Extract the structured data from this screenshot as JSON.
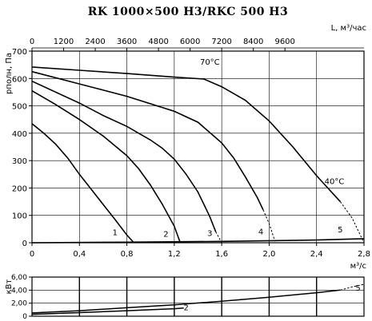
{
  "chart_data": [
    {
      "type": "line",
      "title": "RK 1000×500 H3/RKC 500 H3",
      "ylabel": "pполн, Па",
      "xlabel": "м³/с",
      "top_axis_label": "L, м³/час",
      "xlim": [
        0,
        2.8
      ],
      "ylim": [
        0,
        700
      ],
      "x_ticks": [
        "0",
        "0,4",
        "0,8",
        "1,2",
        "1,6",
        "2,0",
        "2,4",
        "2,8"
      ],
      "y_ticks": [
        "0",
        "100",
        "200",
        "300",
        "400",
        "500",
        "600",
        "700"
      ],
      "top_ticks": [
        "0",
        "1200",
        "2400",
        "3600",
        "4800",
        "6000",
        "7200",
        "8400",
        "9600"
      ],
      "grid": true,
      "annotations": [
        "70°C",
        "40°C"
      ],
      "series": [
        {
          "name": "1",
          "x": [
            0,
            0.1,
            0.2,
            0.3,
            0.4,
            0.5,
            0.6,
            0.7,
            0.8,
            0.86
          ],
          "y": [
            435,
            400,
            360,
            310,
            250,
            195,
            140,
            85,
            28,
            0
          ]
        },
        {
          "name": "2",
          "x": [
            0,
            0.2,
            0.4,
            0.6,
            0.8,
            0.9,
            1.0,
            1.1,
            1.2,
            1.25
          ],
          "y": [
            555,
            505,
            450,
            390,
            318,
            270,
            210,
            140,
            60,
            0
          ]
        },
        {
          "name": "3",
          "x": [
            0,
            0.2,
            0.4,
            0.6,
            0.8,
            1.0,
            1.1,
            1.2,
            1.3,
            1.4,
            1.5,
            1.55
          ],
          "y": [
            590,
            550,
            510,
            465,
            425,
            375,
            345,
            305,
            250,
            185,
            95,
            40
          ]
        },
        {
          "name": "4",
          "x": [
            0,
            0.4,
            0.8,
            1.2,
            1.4,
            1.6,
            1.7,
            1.8,
            1.9,
            1.95
          ],
          "y": [
            625,
            580,
            535,
            480,
            440,
            365,
            310,
            240,
            165,
            120
          ]
        },
        {
          "name": "5",
          "x": [
            0,
            0.4,
            0.8,
            1.2,
            1.45,
            1.6,
            1.8,
            2.0,
            2.2,
            2.4,
            2.6
          ],
          "y": [
            642,
            630,
            618,
            605,
            598,
            570,
            520,
            445,
            350,
            245,
            150
          ]
        },
        {
          "name": "5",
          "x": [
            0,
            0.8,
            1.6,
            2.4,
            2.8
          ],
          "y": [
            0,
            2,
            5,
            10,
            15
          ]
        }
      ],
      "dashed_series": [
        {
          "name": "3",
          "x": [
            1.55,
            1.6
          ],
          "y": [
            40,
            0
          ]
        },
        {
          "name": "4",
          "x": [
            1.95,
            2.0,
            2.05
          ],
          "y": [
            120,
            70,
            5
          ]
        },
        {
          "name": "5",
          "x": [
            2.6,
            2.7,
            2.8
          ],
          "y": [
            150,
            90,
            0
          ]
        }
      ],
      "curve_labels": [
        {
          "text": "1",
          "x": 0.7,
          "y": 28
        },
        {
          "text": "2",
          "x": 1.13,
          "y": 22
        },
        {
          "text": "3",
          "x": 1.5,
          "y": 25
        },
        {
          "text": "4",
          "x": 1.93,
          "y": 30
        },
        {
          "text": "5",
          "x": 2.6,
          "y": 38
        }
      ],
      "annotation_points": [
        {
          "text": "70°C",
          "x": 1.5,
          "y": 650
        },
        {
          "text": "40°C",
          "x": 2.55,
          "y": 215
        }
      ]
    },
    {
      "type": "line",
      "ylabel": "кВт",
      "xlim": [
        0,
        2.8
      ],
      "ylim": [
        0,
        6.0
      ],
      "y_ticks": [
        "0",
        "2,00",
        "4,00",
        "6,00"
      ],
      "grid": true,
      "series": [
        {
          "name": "2",
          "x": [
            0,
            0.4,
            0.8,
            1.2,
            1.28
          ],
          "y": [
            0.3,
            0.55,
            0.85,
            1.15,
            1.25
          ]
        },
        {
          "name": "5",
          "x": [
            0,
            0.4,
            0.8,
            1.2,
            1.6,
            2.0,
            2.4,
            2.6
          ],
          "y": [
            0.5,
            0.85,
            1.3,
            1.75,
            2.3,
            2.9,
            3.6,
            4.0
          ]
        }
      ],
      "dashed_series": [
        {
          "name": "5",
          "x": [
            2.6,
            2.7,
            2.8
          ],
          "y": [
            4.0,
            4.5,
            4.9
          ]
        }
      ],
      "curve_labels": [
        {
          "text": "2",
          "x": 1.3,
          "y": 0.9
        },
        {
          "text": "5",
          "x": 2.75,
          "y": 3.9
        }
      ]
    }
  ]
}
